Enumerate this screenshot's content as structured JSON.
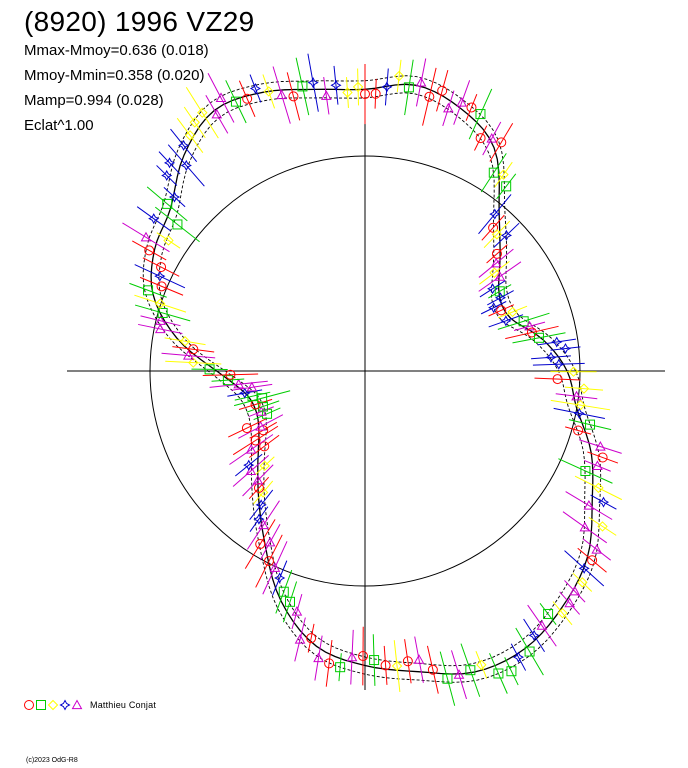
{
  "title": "(8920) 1996 VZ29",
  "stats": {
    "mmax_mmoy": "Mmax-Mmoy=0.636 (0.018)",
    "mmoy_mmin": "Mmoy-Mmin=0.358 (0.020)",
    "mamp": "Mamp=0.994 (0.028)",
    "eclat": "Eclat^1.00"
  },
  "legend": {
    "author": "Matthieu Conjat",
    "symbols": [
      "circle",
      "square",
      "diamond",
      "star",
      "triangle"
    ],
    "colors": [
      "#ff0000",
      "#00cc00",
      "#ffff00",
      "#0000cc",
      "#cc00cc"
    ]
  },
  "copyright": "(c)2023 OdG-R8",
  "chart_data": {
    "type": "scatter",
    "description_type": "polar lightcurve",
    "reference_circle_radius": 1.0,
    "curve": {
      "note": "mean radius vs position angle (degrees, 0 = up, clockwise)",
      "angle": [
        0,
        10,
        20,
        30,
        40,
        50,
        60,
        70,
        80,
        90,
        100,
        110,
        120,
        130,
        140,
        150,
        160,
        170,
        180,
        190,
        200,
        210,
        220,
        230,
        240,
        250,
        260,
        270,
        280,
        290,
        300,
        310,
        320,
        330,
        340,
        350
      ],
      "radius": [
        1.31,
        1.35,
        1.3,
        1.2,
        0.97,
        0.82,
        0.72,
        0.72,
        0.84,
        0.94,
        1.0,
        1.12,
        1.22,
        1.35,
        1.43,
        1.49,
        1.49,
        1.42,
        1.37,
        1.3,
        1.14,
        0.93,
        0.77,
        0.65,
        0.57,
        0.54,
        0.57,
        0.69,
        0.89,
        1.05,
        1.13,
        1.18,
        1.31,
        1.4,
        1.38,
        1.33
      ]
    },
    "series": [
      {
        "name": "",
        "symbol": "circle",
        "color": "#ff0000"
      },
      {
        "name": "",
        "symbol": "square",
        "color": "#00cc00"
      },
      {
        "name": "",
        "symbol": "diamond",
        "color": "#ffff00"
      },
      {
        "name": "",
        "symbol": "star",
        "color": "#0000cc"
      },
      {
        "name": "",
        "symbol": "triangle",
        "color": "#cc00cc"
      }
    ]
  }
}
